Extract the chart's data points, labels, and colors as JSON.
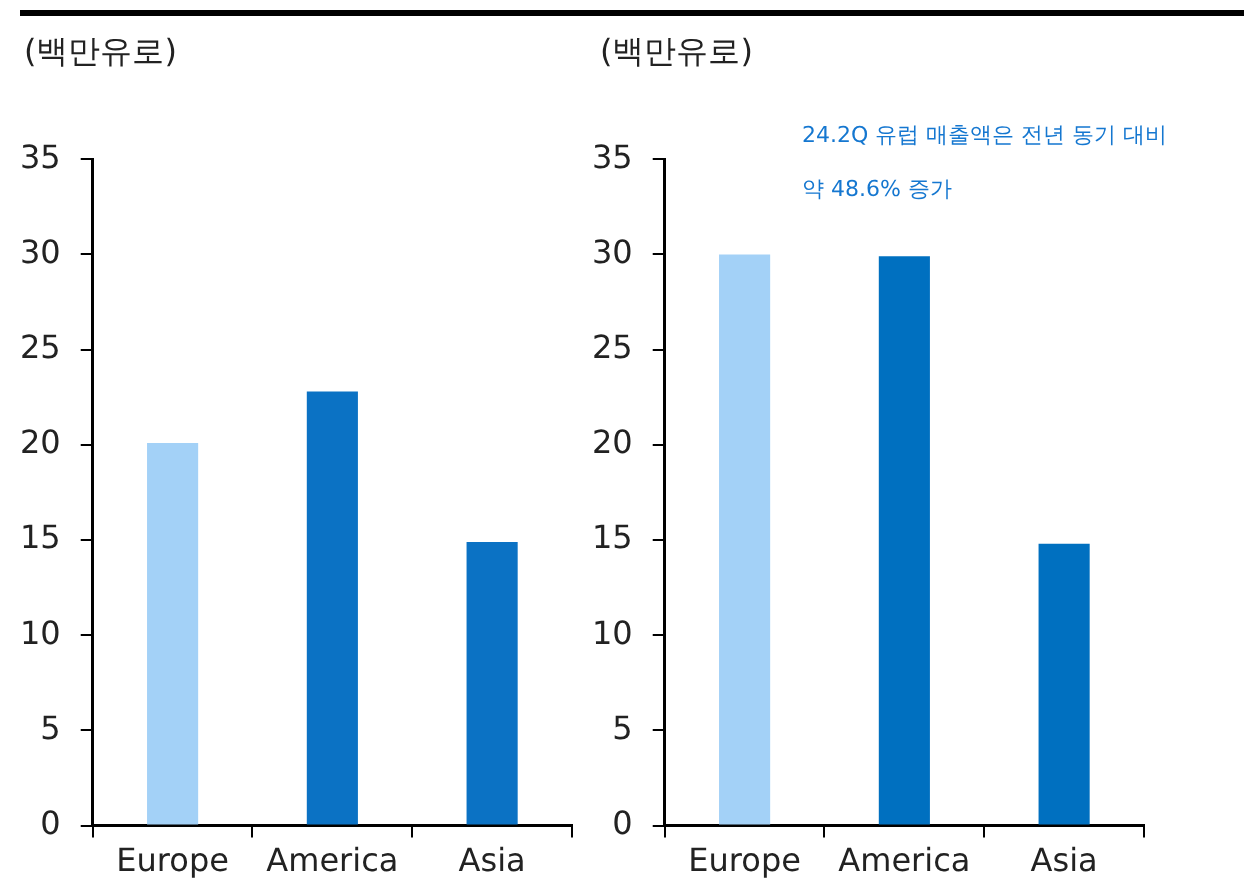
{
  "chart_data": [
    {
      "type": "bar",
      "ylabel": "(백만유로)",
      "categories": [
        "Europe",
        "America",
        "Asia"
      ],
      "values": [
        20.1,
        22.8,
        14.9
      ],
      "colors": [
        "#a3d1f7",
        "#0b72c4",
        "#0b72c4"
      ],
      "ylim": [
        0,
        35
      ],
      "yticks": [
        0,
        5,
        10,
        15,
        20,
        25,
        30,
        35
      ]
    },
    {
      "type": "bar",
      "ylabel": "(백만유로)",
      "categories": [
        "Europe",
        "America",
        "Asia"
      ],
      "values": [
        30.0,
        29.9,
        14.8
      ],
      "colors": [
        "#a3d1f7",
        "#0070c0",
        "#0070c0"
      ],
      "ylim": [
        0,
        35
      ],
      "yticks": [
        0,
        5,
        10,
        15,
        20,
        25,
        30,
        35
      ],
      "annotations": [
        "24.2Q 유럽 매출액은 전년 동기 대비 약 48.6% 증가"
      ]
    }
  ]
}
